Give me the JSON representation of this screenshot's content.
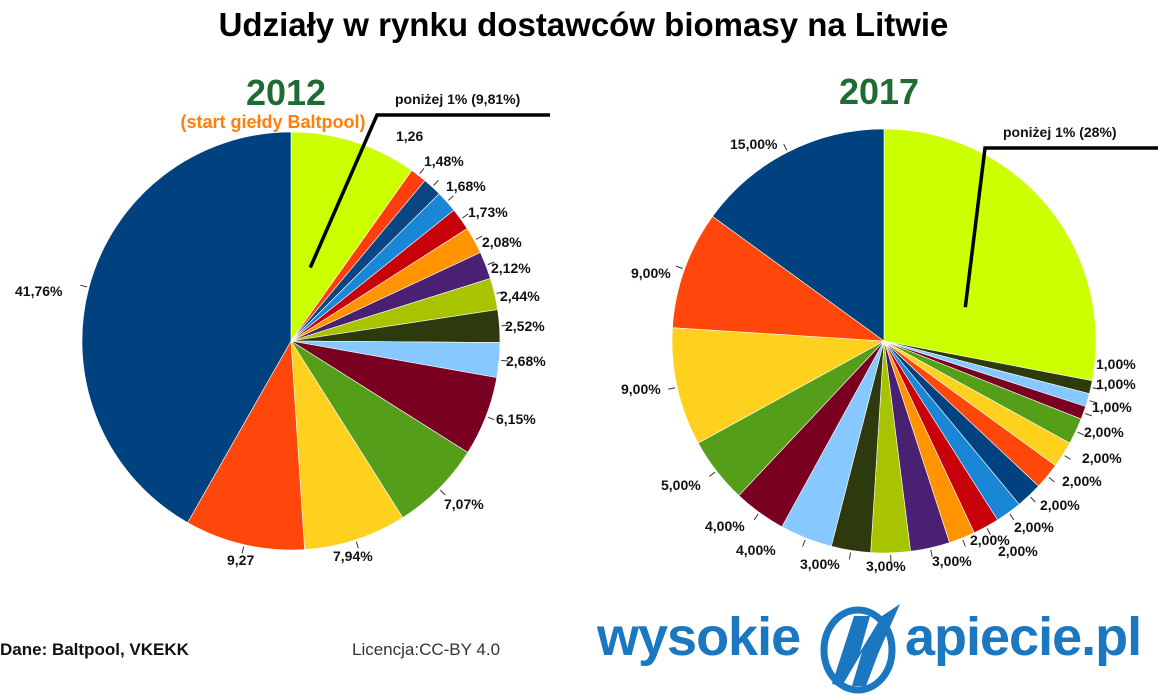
{
  "title": "Udziały w rynku dostawców biomasy na Litwie",
  "source": "Dane: Baltpool, VKEKK",
  "license": "Licencja:CC-BY 4.0",
  "logo": {
    "left": "wysokie",
    "right": "apiecie.pl",
    "mark_icon": "lightning-n-logo-icon",
    "color": "#1b78c0"
  },
  "chart_data": [
    {
      "type": "pie",
      "title": "2012",
      "subtitle": "(start giełdy Baltpool)",
      "slices": [
        {
          "label": "poniżej 1% (9,81%)",
          "value": 9.81,
          "color": "#ccff00"
        },
        {
          "label": "1,26",
          "value": 1.26,
          "color": "#ff3d0d"
        },
        {
          "label": "1,48%",
          "value": 1.48,
          "color": "#0b4583"
        },
        {
          "label": "1,68%",
          "value": 1.68,
          "color": "#1a86d6"
        },
        {
          "label": "1,73%",
          "value": 1.73,
          "color": "#c8000a"
        },
        {
          "label": "2,08%",
          "value": 2.08,
          "color": "#ff9400"
        },
        {
          "label": "2,12%",
          "value": 2.12,
          "color": "#4a2172"
        },
        {
          "label": "2,44%",
          "value": 2.44,
          "color": "#a8c400"
        },
        {
          "label": "2,52%",
          "value": 2.52,
          "color": "#2d3a0e"
        },
        {
          "label": "2,68%",
          "value": 2.68,
          "color": "#86c8ff"
        },
        {
          "label": "6,15%",
          "value": 6.15,
          "color": "#7a0022"
        },
        {
          "label": "7,07%",
          "value": 7.07,
          "color": "#559e1a"
        },
        {
          "label": "7,94%",
          "value": 7.94,
          "color": "#ffd11f"
        },
        {
          "label": "9,27",
          "value": 9.27,
          "color": "#ff470b"
        },
        {
          "label": "41,76%",
          "value": 41.76,
          "color": "#00427f"
        }
      ]
    },
    {
      "type": "pie",
      "title": "2017",
      "slices": [
        {
          "label": "poniżej 1% (28%)",
          "value": 28,
          "color": "#ccff00"
        },
        {
          "label": "1,00%",
          "value": 1,
          "color": "#2d3a0e"
        },
        {
          "label": "1,00%",
          "value": 1,
          "color": "#86c8ff"
        },
        {
          "label": "1,00%",
          "value": 1,
          "color": "#7a0022"
        },
        {
          "label": "2,00%",
          "value": 2,
          "color": "#559e1a"
        },
        {
          "label": "2,00%",
          "value": 2,
          "color": "#ffd11f"
        },
        {
          "label": "2,00%",
          "value": 2,
          "color": "#ff470b"
        },
        {
          "label": "2,00%",
          "value": 2,
          "color": "#00427f"
        },
        {
          "label": "2,00%",
          "value": 2,
          "color": "#1a86d6"
        },
        {
          "label": "2,00%",
          "value": 2,
          "color": "#c8000a"
        },
        {
          "label": "2,00%",
          "value": 2,
          "color": "#ff9400"
        },
        {
          "label": "3,00%",
          "value": 3,
          "color": "#4a2172"
        },
        {
          "label": "3,00%",
          "value": 3,
          "color": "#a8c400"
        },
        {
          "label": "3,00%",
          "value": 3,
          "color": "#2d3a0e"
        },
        {
          "label": "4,00%",
          "value": 4,
          "color": "#86c8ff"
        },
        {
          "label": "4,00%",
          "value": 4,
          "color": "#7a0022"
        },
        {
          "label": "5,00%",
          "value": 5,
          "color": "#559e1a"
        },
        {
          "label": "9,00%",
          "value": 9,
          "color": "#ffd11f"
        },
        {
          "label": "9,00%",
          "value": 9,
          "color": "#ff470b"
        },
        {
          "label": "15,00%",
          "value": 15,
          "color": "#00427f"
        }
      ]
    }
  ]
}
